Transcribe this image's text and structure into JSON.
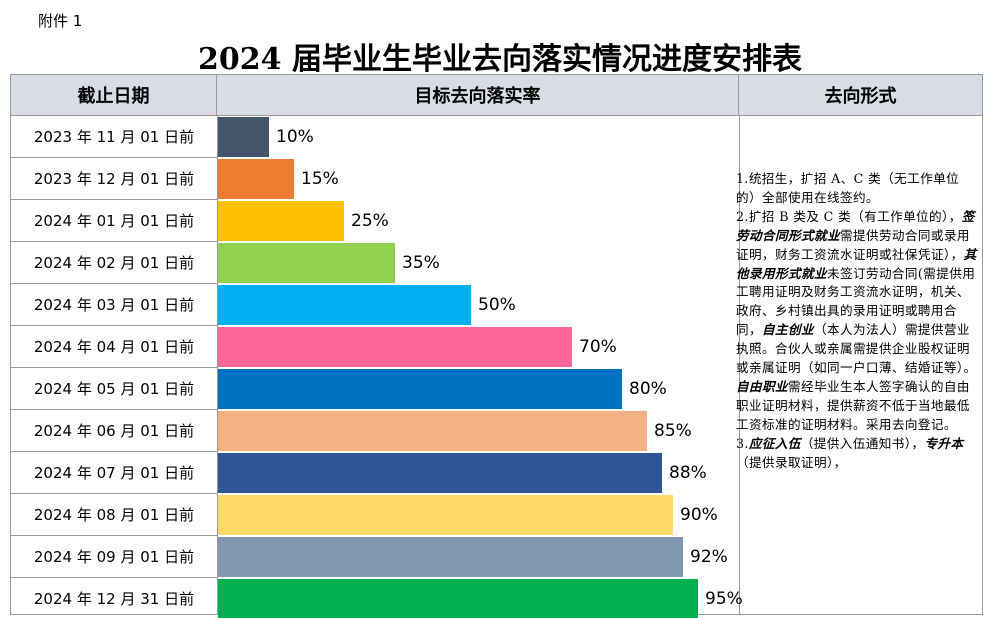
{
  "attachment_label": "附件 1",
  "title": "2024 届毕业生毕业去向落实情况进度安排表",
  "headers": {
    "deadline": "截止日期",
    "rate": "目标去向落实率",
    "form": "去向形式"
  },
  "rows": [
    {
      "date": "2023 年 11 月 01 日前",
      "pct": "10%",
      "value": 10,
      "color": "#44546a"
    },
    {
      "date": "2023 年 12 月 01 日前",
      "pct": "15%",
      "value": 15,
      "color": "#ed7d31"
    },
    {
      "date": "2024 年 01 月 01 日前",
      "pct": "25%",
      "value": 25,
      "color": "#ffc000"
    },
    {
      "date": "2024 年 02 月 01 日前",
      "pct": "35%",
      "value": 35,
      "color": "#92d050"
    },
    {
      "date": "2024 年 03 月 01 日前",
      "pct": "50%",
      "value": 50,
      "color": "#00b0f0"
    },
    {
      "date": "2024 年 04 月 01 日前",
      "pct": "70%",
      "value": 70,
      "color": "#ff6699"
    },
    {
      "date": "2024 年 05 月 01 日前",
      "pct": "80%",
      "value": 80,
      "color": "#0070c0"
    },
    {
      "date": "2024 年 06 月 01 日前",
      "pct": "85%",
      "value": 85,
      "color": "#f4b183"
    },
    {
      "date": "2024 年 07 月 01 日前",
      "pct": "88%",
      "value": 88,
      "color": "#2f5597"
    },
    {
      "date": "2024 年 08 月 01 日前",
      "pct": "90%",
      "value": 90,
      "color": "#ffd966"
    },
    {
      "date": "2024 年 09 月 01 日前",
      "pct": "92%",
      "value": 92,
      "color": "#8497b0"
    },
    {
      "date": "2024 年 12 月 31 日前",
      "pct": "95%",
      "value": 95,
      "color": "#00b050"
    }
  ],
  "description": {
    "p1_prefix": "1.统招生，扩招 A、C 类（无工作单位的）全部使用",
    "p1_key": "在线签约",
    "p1_end": "。",
    "p2_prefix": "2.扩招 B 类及 C 类（有工作单位的），",
    "p2_key1": "签劳动合同形式就业",
    "p2_text1": "需提供劳动合同或录用证明，财务工资流水证明或社保凭证），",
    "p2_key2": "其他录用形式就业",
    "p2_text2": "未签订劳动合同(需提供用工聘用证明及财务工资流水证明，机关、政府、乡村镇出具的录用证明或聘用合同，",
    "p2_key3": "自主创业",
    "p2_text3": "（本人为法人）需提供营业执照。合伙人或亲属需提供企业股权证明或亲属证明（如同一户口薄、结婚证等）。",
    "p2_key4": "自由职业",
    "p2_text4": "需经毕业生本人签字确认的自由职业证明材料，提供薪资不低于当地最低工资标准的证明材料。采用",
    "p2_key5": "去向登记",
    "p2_end": "。",
    "p3_prefix": "3.",
    "p3_key1": "应征入伍",
    "p3_text1": "（提供入伍通知书），",
    "p3_key2": "专升本",
    "p3_text2": "（提供录取证明），"
  }
}
